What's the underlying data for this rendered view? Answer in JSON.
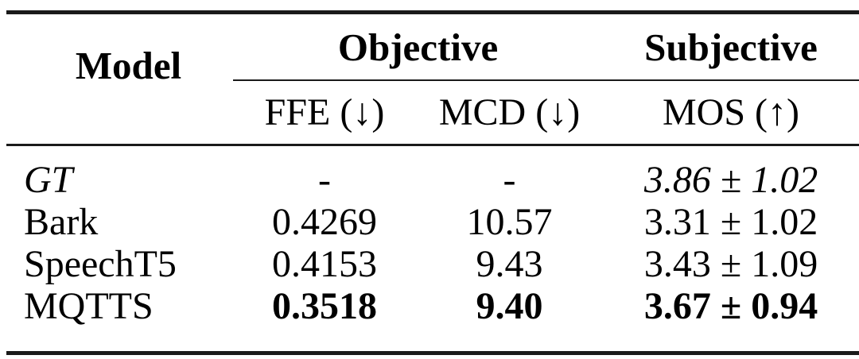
{
  "table": {
    "header": {
      "model": "Model",
      "objective_group": "Objective",
      "subjective_group": "Subjective",
      "ffe": "FFE (↓)",
      "mcd": "MCD (↓)",
      "mos": "MOS (↑)"
    },
    "rows": [
      {
        "model": "GT",
        "ffe": "-",
        "mcd": "-",
        "mos": "3.86 ± 1.02"
      },
      {
        "model": "Bark",
        "ffe": "0.4269",
        "mcd": "10.57",
        "mos": "3.31 ± 1.02"
      },
      {
        "model": "SpeechT5",
        "ffe": "0.4153",
        "mcd": "9.43",
        "mos": "3.43 ± 1.09"
      },
      {
        "model": "MQTTS",
        "ffe": "0.3518",
        "mcd": "9.40",
        "mos": "3.67 ± 0.94"
      }
    ]
  },
  "colors": {
    "text": "#000000",
    "rule": "#1a1a1a",
    "background": "#ffffff"
  }
}
